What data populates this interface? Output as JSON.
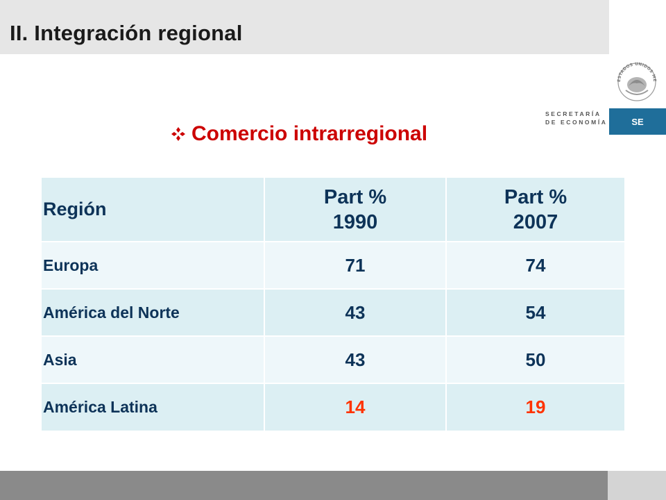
{
  "slide": {
    "title": "II. Integración regional",
    "subtitle": "Comercio intrarregional"
  },
  "logo": {
    "seal_text": "ESTADOS UNIDOS MEXICANOS",
    "agency_line1": "SECRETARÍA",
    "agency_line2": "DE ECONOMÍA",
    "badge": "SE",
    "badge_color": "#1f6e9a"
  },
  "table": {
    "headers": {
      "region": "Región",
      "col1_line1": "Part %",
      "col1_line2": "1990",
      "col2_line1": "Part %",
      "col2_line2": "2007"
    },
    "rows": [
      {
        "region": "Europa",
        "v1990": "71",
        "v2007": "74"
      },
      {
        "region": "América  del Norte",
        "v1990": "43",
        "v2007": "54"
      },
      {
        "region": "Asia",
        "v1990": "43",
        "v2007": "50"
      },
      {
        "region": "América  Latina",
        "v1990": "14",
        "v2007": "19"
      }
    ],
    "highlight_color": "#ff3300"
  },
  "colors": {
    "heading": "#cc0000",
    "table_text": "#0d3358",
    "header_bg": "#dceff3",
    "row_light_bg": "#eef7fa"
  }
}
